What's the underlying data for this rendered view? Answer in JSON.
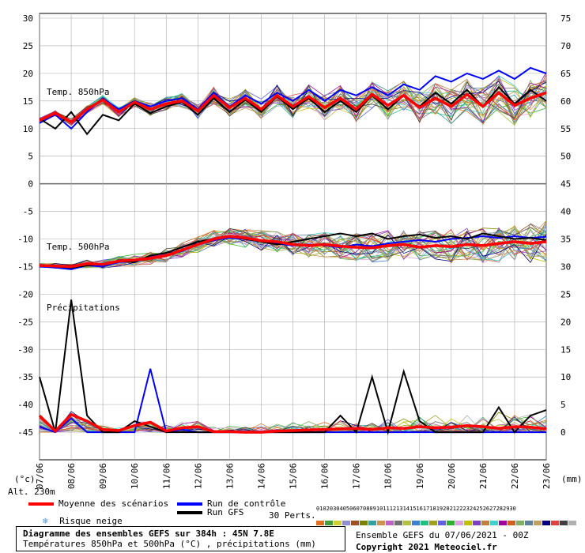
{
  "chart_data": {
    "type": "line",
    "dates": [
      "07/06",
      "08/06",
      "09/06",
      "10/06",
      "11/06",
      "12/06",
      "13/06",
      "14/06",
      "15/06",
      "16/06",
      "17/06",
      "18/06",
      "19/06",
      "20/06",
      "21/06",
      "22/06",
      "23/06"
    ],
    "left_ticks": [
      "30",
      "25",
      "20",
      "15",
      "10",
      "5",
      "0",
      "-5",
      "-10",
      "-15",
      "-20",
      "-25",
      "-30",
      "-35",
      "-40",
      "-45"
    ],
    "right_ticks_temp850": [
      "75",
      "70",
      "65",
      "60",
      "55",
      "50",
      "45"
    ],
    "right_ticks_temp500": [
      "40",
      "35",
      "30",
      "25"
    ],
    "right_ticks_precip": [
      "20",
      "15",
      "10",
      "5",
      "0"
    ],
    "panels": [
      {
        "name": "Temp. 850hPa",
        "ylim": [
          0,
          30
        ],
        "axis_right": [
          45,
          75
        ]
      },
      {
        "name": "Temp. 500hPa",
        "ylim": [
          -20,
          0
        ],
        "axis_right": [
          25,
          45
        ]
      },
      {
        "name": "Précipitations",
        "ylim_right": [
          0,
          20
        ]
      }
    ],
    "series": [
      {
        "name": "Moyenne des scénarios",
        "color": "#ff0000",
        "temp850": [
          11.5,
          12.8,
          11.2,
          13.5,
          15.2,
          13.0,
          14.8,
          13.5,
          14.5,
          15.0,
          13.2,
          16.0,
          13.8,
          15.5,
          13.5,
          16.0,
          14.0,
          15.8,
          13.8,
          15.5,
          13.5,
          16.2,
          14.2,
          16.0,
          13.8,
          15.5,
          14.0,
          16.2,
          14.0,
          16.5,
          14.2,
          15.5,
          16.5
        ],
        "temp500": [
          -14.8,
          -14.9,
          -15.0,
          -14.5,
          -14.6,
          -14.0,
          -13.8,
          -13.5,
          -13.0,
          -12.0,
          -11.0,
          -10.0,
          -9.5,
          -9.8,
          -10.3,
          -10.5,
          -11.0,
          -11.2,
          -11.0,
          -11.3,
          -11.5,
          -11.6,
          -11.2,
          -11.0,
          -11.5,
          -11.2,
          -11.4,
          -11.0,
          -11.2,
          -10.8,
          -10.5,
          -10.8,
          -10.5
        ],
        "precip": [
          3,
          0.2,
          3.2,
          2,
          0.5,
          0.3,
          1.2,
          1.8,
          0.2,
          0.8,
          1,
          0.1,
          0.1,
          0,
          0,
          0.2,
          0.3,
          0.4,
          0.5,
          0.6,
          0.7,
          0.5,
          0.8,
          0.7,
          1,
          0.8,
          0.9,
          1.2,
          1,
          0.7,
          1,
          0.9,
          0.6
        ]
      },
      {
        "name": "Run de contrôle",
        "color": "#0000ff",
        "temp850": [
          11.0,
          12.5,
          10.0,
          13.0,
          15.5,
          13.5,
          15.0,
          14.0,
          15.0,
          15.5,
          13.5,
          16.5,
          14.0,
          16.0,
          14.5,
          16.5,
          15.0,
          17.0,
          15.0,
          17.0,
          16.0,
          17.5,
          16.0,
          18.0,
          17.0,
          19.5,
          18.5,
          20.0,
          19.0,
          20.5,
          19.0,
          21.0,
          20.0
        ],
        "temp500": [
          -15.0,
          -15.2,
          -15.5,
          -14.8,
          -15.0,
          -14.2,
          -14.0,
          -13.5,
          -13.0,
          -12.2,
          -11.0,
          -10.2,
          -9.8,
          -10.0,
          -10.5,
          -10.8,
          -11.2,
          -11.0,
          -11.2,
          -11.5,
          -11.0,
          -11.3,
          -10.8,
          -10.5,
          -10.2,
          -10.5,
          -10.0,
          -9.8,
          -9.5,
          -9.8,
          -9.5,
          -9.8,
          -9.6
        ],
        "precip": [
          1,
          0,
          2.5,
          0,
          0,
          0,
          0,
          11.5,
          0,
          0.5,
          0,
          0,
          0,
          0,
          0,
          0,
          0,
          0,
          0,
          0,
          0,
          0,
          0,
          0,
          0,
          0,
          0,
          0,
          0,
          0,
          0,
          0,
          0
        ]
      },
      {
        "name": "Run GFS",
        "color": "#000000",
        "temp850": [
          11.8,
          10.0,
          13.0,
          9.0,
          12.5,
          11.5,
          14.5,
          12.8,
          14.0,
          14.8,
          12.5,
          15.5,
          13.0,
          15.2,
          13.0,
          15.8,
          13.5,
          15.5,
          13.0,
          15.0,
          13.0,
          16.0,
          13.5,
          16.0,
          14.0,
          16.5,
          14.5,
          17.0,
          14.0,
          17.5,
          14.5,
          17.0,
          15.0
        ],
        "temp500": [
          -14.8,
          -15.0,
          -15.2,
          -14.8,
          -14.5,
          -14.0,
          -14.2,
          -13.0,
          -12.5,
          -11.5,
          -10.5,
          -10.0,
          -9.5,
          -10.0,
          -10.5,
          -11.0,
          -10.5,
          -10.0,
          -9.5,
          -9.0,
          -9.5,
          -9.0,
          -10.0,
          -9.5,
          -9.2,
          -9.8,
          -9.5,
          -10.0,
          -9.0,
          -9.5,
          -10.0,
          -9.8,
          -10.2
        ],
        "precip": [
          10,
          0,
          24,
          3,
          0,
          0,
          2,
          1,
          0,
          0,
          0,
          0,
          0,
          0,
          0,
          0,
          0,
          0,
          0,
          3,
          0,
          10,
          0,
          11,
          2,
          0,
          0,
          0,
          0,
          4.5,
          0,
          3,
          4
        ]
      }
    ]
  },
  "labels": {
    "temp850": "Temp. 850hPa",
    "temp500": "Temp. 500hPa",
    "precip": "Précipitations",
    "unit_left": "(°c)",
    "unit_right": "(mm)",
    "altitude": "Alt. 230m"
  },
  "legend": {
    "mean": "Moyenne des scénarios",
    "control": "Run de contrôle",
    "gfs": "Run GFS",
    "snow": "Risque neige",
    "perts": "30 Perts.",
    "pert_numbers": [
      "01",
      "02",
      "03",
      "04",
      "05",
      "06",
      "07",
      "08",
      "09",
      "10",
      "11",
      "12",
      "13",
      "14",
      "15",
      "16",
      "17",
      "18",
      "19",
      "20",
      "21",
      "22",
      "23",
      "24",
      "25",
      "26",
      "27",
      "28",
      "29",
      "30"
    ],
    "pert_colors": [
      "#e07020",
      "#40a040",
      "#d0d030",
      "#9090d0",
      "#a05020",
      "#808000",
      "#30a0a0",
      "#d09050",
      "#c060c0",
      "#707070",
      "#b0c040",
      "#4080d0",
      "#20c080",
      "#a0a020",
      "#6060e0",
      "#30b030",
      "#e0a0e0",
      "#c0c000",
      "#8040c0",
      "#c08040",
      "#40d0d0",
      "#a000a0",
      "#d06020",
      "#80b060",
      "#6080a0",
      "#c0a060",
      "#000080",
      "#e04040",
      "#404040",
      "#b0b0b0"
    ]
  },
  "footer": {
    "title": "Diagramme des ensembles GEFS sur 384h : 45N 7.8E",
    "subtitle": "Températures 850hPa et 500hPa (°C) , précipitations (mm)",
    "ensemble": "Ensemble GEFS du 07/06/2021 - 00Z",
    "copyright": "Copyright 2021 Meteociel.fr"
  },
  "colors": {
    "mean": "#ff0000",
    "control": "#0000ff",
    "gfs": "#000000",
    "grid": "#aaaaaa"
  }
}
